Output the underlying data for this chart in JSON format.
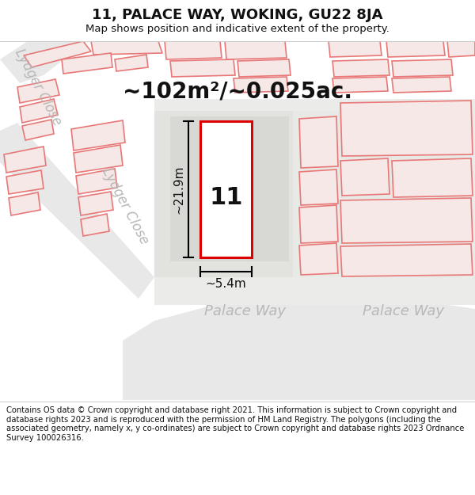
{
  "title": "11, PALACE WAY, WOKING, GU22 8JA",
  "subtitle": "Map shows position and indicative extent of the property.",
  "area_text": "~102m²/~0.025ac.",
  "dim_width": "~5.4m",
  "dim_height": "~21.9m",
  "property_number": "11",
  "footer": "Contains OS data © Crown copyright and database right 2021. This information is subject to Crown copyright and database rights 2023 and is reproduced with the permission of HM Land Registry. The polygons (including the associated geometry, namely x, y co-ordinates) are subject to Crown copyright and database rights 2023 Ordnance Survey 100026316.",
  "bg_color": "#ffffff",
  "map_bg": "#ffffff",
  "road_fill": "#e8e8e8",
  "building_fill": "#f5e8e6",
  "building_stroke": "#e87878",
  "block_fill": "#e0e0dc",
  "highlight_fill": "#ffffff",
  "highlight_stroke": "#dd0000",
  "street_text_color": "#b8b8b8",
  "title_color": "#111111",
  "footer_color": "#111111",
  "title_fontsize": 13,
  "subtitle_fontsize": 9.5,
  "footer_fontsize": 7.2,
  "area_fontsize": 20,
  "number_fontsize": 22,
  "dim_fontsize": 11,
  "street_fontsize": 12
}
